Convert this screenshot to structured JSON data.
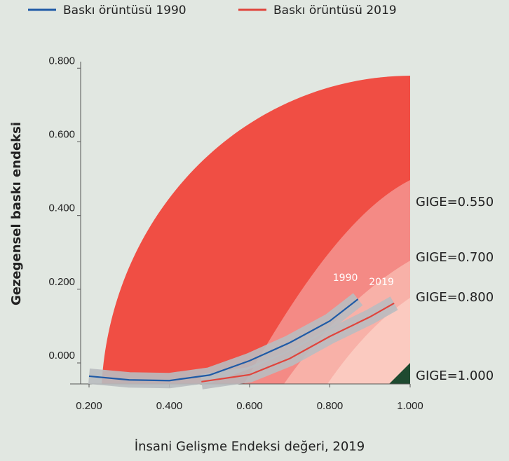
{
  "chart_data": {
    "type": "line",
    "xlabel": "İnsani Gelişme Endeksi değeri, 2019",
    "ylabel": "Gezegensel baskı endeksi",
    "xlim": [
      0.2,
      1.0
    ],
    "ylim": [
      -0.057,
      0.85
    ],
    "xticks": [
      {
        "value": 0.2,
        "label": "0.200"
      },
      {
        "value": 0.4,
        "label": "0.400"
      },
      {
        "value": 0.6,
        "label": "0.600"
      },
      {
        "value": 0.8,
        "label": "0.800"
      },
      {
        "value": 1.0,
        "label": "1.000"
      }
    ],
    "yticks": [
      {
        "value": 0.0,
        "label": "0.000"
      },
      {
        "value": 0.2,
        "label": "0.200"
      },
      {
        "value": 0.4,
        "label": "0.400"
      },
      {
        "value": 0.6,
        "label": "0.600"
      },
      {
        "value": 0.8,
        "label": "0.800"
      }
    ],
    "series": [
      {
        "name": "Baskı örüntüsü 1990",
        "color": "#1f5aa6",
        "label": "1990",
        "x": [
          0.2,
          0.3,
          0.4,
          0.5,
          0.6,
          0.7,
          0.8,
          0.87
        ],
        "values": [
          -0.036,
          -0.046,
          -0.048,
          -0.033,
          0.006,
          0.055,
          0.114,
          0.173
        ]
      },
      {
        "name": "Baskı örüntüsü 2019",
        "color": "#e0443c",
        "label": "2019",
        "x": [
          0.48,
          0.6,
          0.7,
          0.8,
          0.9,
          0.96
        ],
        "values": [
          -0.051,
          -0.032,
          0.012,
          0.072,
          0.125,
          0.162
        ]
      }
    ],
    "regions": [
      {
        "label": "GIGE=0.550",
        "color": "#f48a85"
      },
      {
        "label": "GIGE=0.700",
        "color": "#f8b1a8"
      },
      {
        "label": "GIGE=0.800",
        "color": "#fbcac0"
      },
      {
        "label": "GIGE=1.000",
        "color": "#1e4a30"
      }
    ]
  }
}
